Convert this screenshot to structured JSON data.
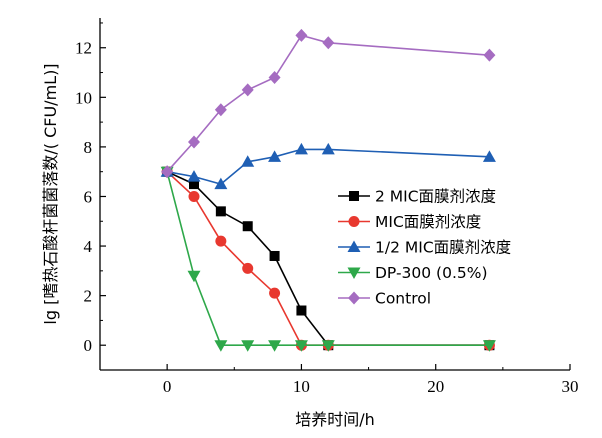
{
  "chart_data": {
    "type": "line",
    "title": "",
    "xlabel": "培养时间/h",
    "ylabel": "lg [嗜热石酸杆菌菌落数/( CFU/mL)]",
    "xlim": [
      -5,
      30
    ],
    "ylim": [
      -1,
      13.2
    ],
    "xticks": [
      0,
      10,
      20,
      30
    ],
    "yticks": [
      0,
      2,
      4,
      6,
      8,
      10,
      12
    ],
    "grid": false,
    "legend_position": "right",
    "series": [
      {
        "name": "2 MIC面膜剂浓度",
        "color": "#000000",
        "marker": "square",
        "x": [
          0,
          2,
          4,
          6,
          8,
          10,
          12,
          24
        ],
        "y": [
          7.0,
          6.5,
          5.4,
          4.8,
          3.6,
          1.4,
          0,
          0
        ]
      },
      {
        "name": "MIC面膜剂浓度",
        "color": "#e8382f",
        "marker": "circle",
        "x": [
          0,
          2,
          4,
          6,
          8,
          10,
          12,
          24
        ],
        "y": [
          7.0,
          6.0,
          4.2,
          3.1,
          2.1,
          0,
          0,
          0
        ]
      },
      {
        "name": "1/2 MIC面膜剂浓度",
        "color": "#1f5fb4",
        "marker": "triangle-up",
        "x": [
          0,
          2,
          4,
          6,
          8,
          10,
          12,
          24
        ],
        "y": [
          7.0,
          6.8,
          6.5,
          7.4,
          7.6,
          7.9,
          7.9,
          7.6
        ]
      },
      {
        "name": "DP-300 (0.5%)",
        "color": "#2ea84a",
        "marker": "triangle-down",
        "x": [
          0,
          2,
          4,
          6,
          8,
          10,
          12,
          24
        ],
        "y": [
          7.0,
          2.8,
          0,
          0,
          0,
          0,
          0,
          0
        ]
      },
      {
        "name": "Control",
        "color": "#a56cc1",
        "marker": "diamond",
        "x": [
          0,
          2,
          4,
          6,
          8,
          10,
          12,
          24
        ],
        "y": [
          7.0,
          8.2,
          9.5,
          10.3,
          10.8,
          12.5,
          12.2,
          11.7
        ]
      }
    ]
  }
}
